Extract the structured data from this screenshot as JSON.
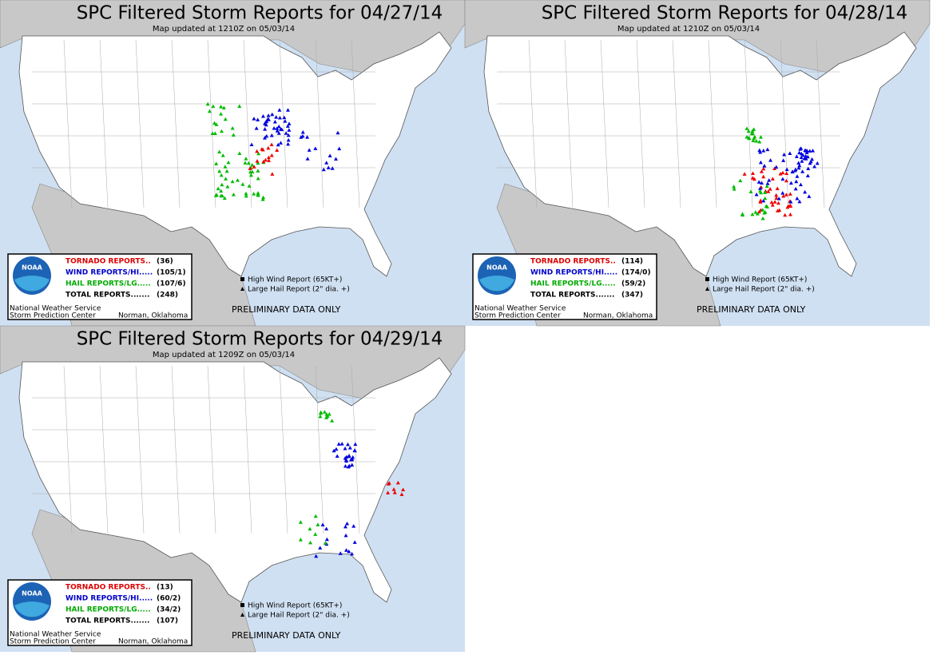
{
  "panels": [
    {
      "title": "SPC Filtered Storm Reports for 04/27/14",
      "updated": "Map updated at 1210Z  on 05/03/14",
      "tornado_label": "TORNADO REPORTS..",
      "tornado_count": "(36)",
      "wind_label": "WIND REPORTS/HI.....",
      "wind_count": "(105/1)",
      "hail_label": "HAIL REPORTS/LG.....",
      "hail_count": "(107/6)",
      "total_label": "TOTAL REPORTS.......",
      "total_count": "(248)",
      "org_line1": "National Weather Service",
      "org_line2": "Storm Prediction Center",
      "location": "Norman, Oklahoma",
      "high_wind_note": "High Wind Report (65KT+)",
      "large_hail_note": "Large Hail Report (2\" dia. +)",
      "preliminary": "PRELIMINARY DATA ONLY",
      "logo": "NOAA"
    },
    {
      "title": "SPC Filtered Storm Reports for 04/28/14",
      "updated": "Map updated at 1210Z  on 05/03/14",
      "tornado_label": "TORNADO REPORTS..",
      "tornado_count": "(114)",
      "wind_label": "WIND REPORTS/HI.....",
      "wind_count": "(174/0)",
      "hail_label": "HAIL REPORTS/LG.....",
      "hail_count": "(59/2)",
      "total_label": "TOTAL REPORTS.......",
      "total_count": "(347)",
      "org_line1": "National Weather Service",
      "org_line2": "Storm Prediction Center",
      "location": "Norman, Oklahoma",
      "high_wind_note": "High Wind Report (65KT+)",
      "large_hail_note": "Large Hail Report (2\" dia. +)",
      "preliminary": "PRELIMINARY DATA ONLY",
      "logo": "NOAA"
    },
    {
      "title": "SPC Filtered Storm Reports for 04/29/14",
      "updated": "Map updated at 1209Z  on 05/03/14",
      "tornado_label": "TORNADO REPORTS..",
      "tornado_count": "(13)",
      "wind_label": "WIND REPORTS/HI.....",
      "wind_count": "(60/2)",
      "hail_label": "HAIL REPORTS/LG.....",
      "hail_count": "(34/2)",
      "total_label": "TOTAL REPORTS.......",
      "total_count": "(107)",
      "org_line1": "National Weather Service",
      "org_line2": "Storm Prediction Center",
      "location": "Norman, Oklahoma",
      "high_wind_note": "High Wind Report (65KT+)",
      "large_hail_note": "Large Hail Report (2\" dia. +)",
      "preliminary": "PRELIMINARY DATA ONLY",
      "logo": "NOAA"
    }
  ]
}
